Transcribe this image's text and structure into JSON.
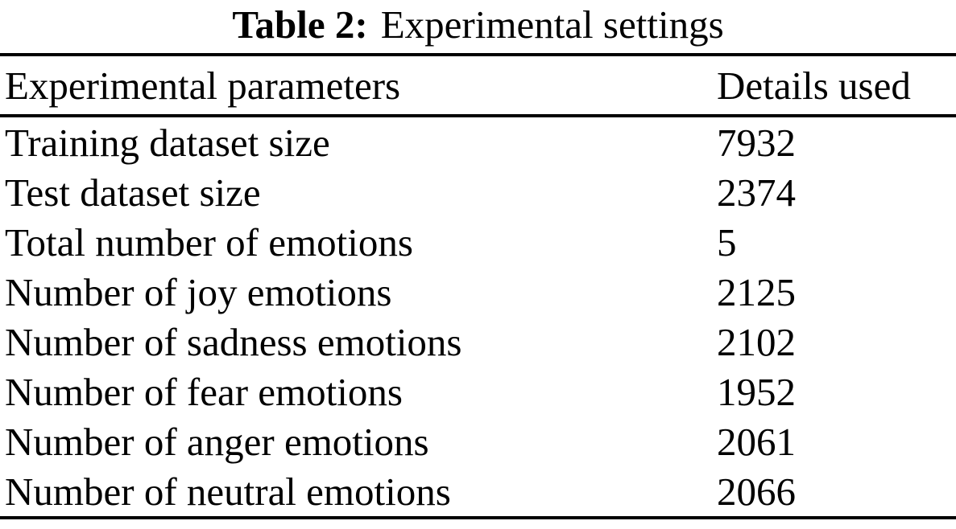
{
  "caption": {
    "label": "Table 2:",
    "text": "Experimental settings"
  },
  "table": {
    "columns": [
      "Experimental parameters",
      "Details used"
    ],
    "rows": [
      {
        "parameter": "Training dataset size",
        "value": "7932"
      },
      {
        "parameter": "Test dataset size",
        "value": "2374"
      },
      {
        "parameter": "Total number of emotions",
        "value": "5"
      },
      {
        "parameter": "Number of joy emotions",
        "value": "2125"
      },
      {
        "parameter": "Number of sadness emotions",
        "value": "2102"
      },
      {
        "parameter": "Number of fear emotions",
        "value": "1952"
      },
      {
        "parameter": "Number of anger emotions",
        "value": "2061"
      },
      {
        "parameter": "Number of neutral emotions",
        "value": "2066"
      }
    ]
  },
  "colors": {
    "background": "#ffffff",
    "text": "#000000",
    "rule": "#000000"
  }
}
